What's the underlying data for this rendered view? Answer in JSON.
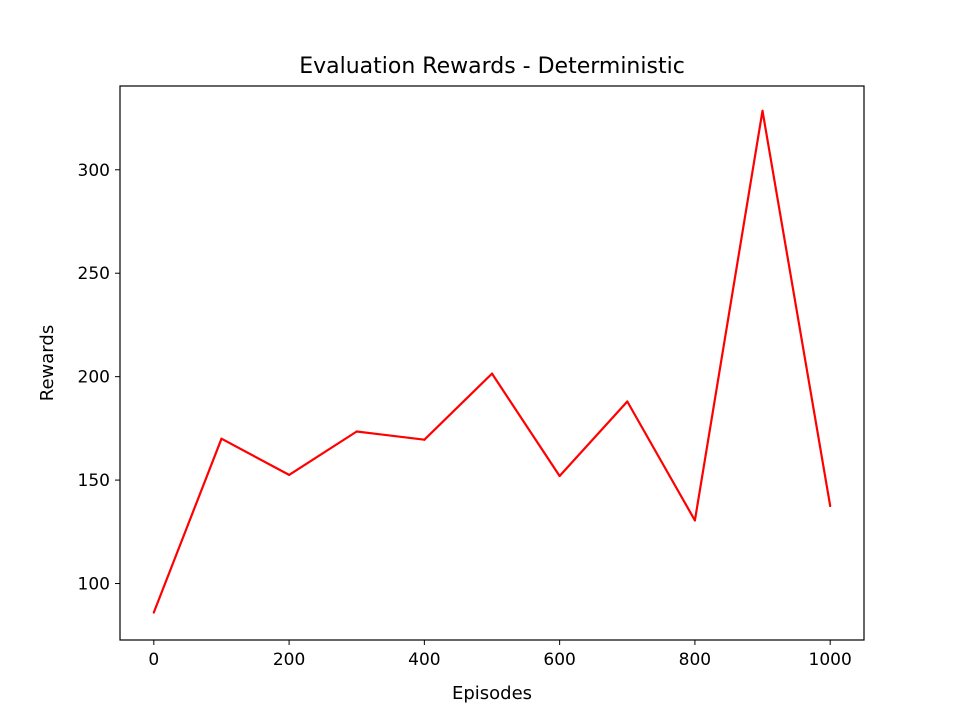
{
  "chart_data": {
    "type": "line",
    "title": "Evaluation Rewards - Deterministic",
    "xlabel": "Episodes",
    "ylabel": "Rewards",
    "xlim": [
      -50,
      1050
    ],
    "ylim": [
      72.7,
      340.5
    ],
    "xticks": [
      0,
      200,
      400,
      600,
      800,
      1000
    ],
    "yticks": [
      100,
      150,
      200,
      250,
      300
    ],
    "grid": false,
    "series": [
      {
        "color": "#ff0000",
        "x": [
          0,
          100,
          200,
          300,
          400,
          500,
          600,
          700,
          800,
          900,
          1000
        ],
        "y": [
          86,
          170,
          152.5,
          173.5,
          169.5,
          201.5,
          152,
          188,
          130.5,
          328.5,
          137.5
        ]
      }
    ]
  }
}
